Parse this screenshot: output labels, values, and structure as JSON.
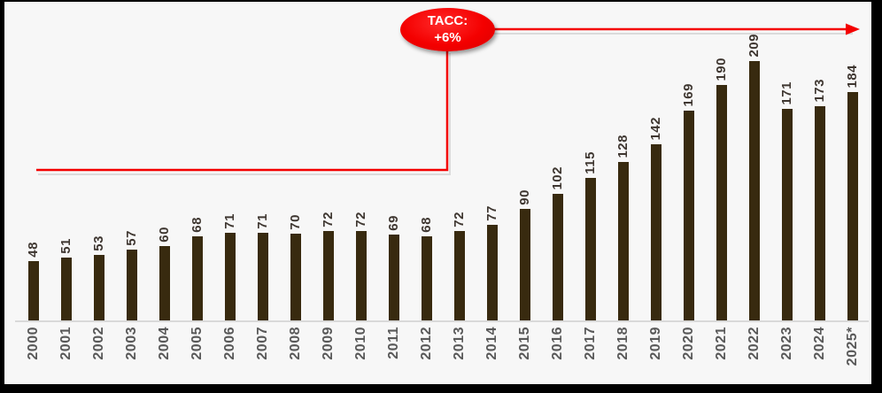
{
  "chart_data": {
    "type": "bar",
    "categories": [
      "2000",
      "2001",
      "2002",
      "2003",
      "2004",
      "2005",
      "2006",
      "2007",
      "2008",
      "2009",
      "2010",
      "2011",
      "2012",
      "2013",
      "2014",
      "2015",
      "2016",
      "2017",
      "2018",
      "2019",
      "2020",
      "2021",
      "2022",
      "2023",
      "2024",
      "2025*"
    ],
    "values": [
      48,
      51,
      53,
      57,
      60,
      68,
      71,
      71,
      70,
      72,
      72,
      69,
      68,
      72,
      77,
      90,
      102,
      115,
      128,
      142,
      169,
      190,
      209,
      171,
      173,
      184
    ],
    "title": "",
    "xlabel": "",
    "ylabel": "",
    "ylim": [
      0,
      230
    ],
    "grid": false,
    "legend": "none",
    "value_labels_shown": true,
    "colors": {
      "bar": "#382A0F",
      "value_label": "#3E3630",
      "year_label": "#595959",
      "axis_line": "#D9D9D9",
      "background": "#F7F7F7",
      "frame": "#000000"
    }
  },
  "annotation": {
    "label_line1": "TACC:",
    "label_line2": "+6%",
    "color": "#F40000",
    "text_color": "#FFFFFF"
  }
}
